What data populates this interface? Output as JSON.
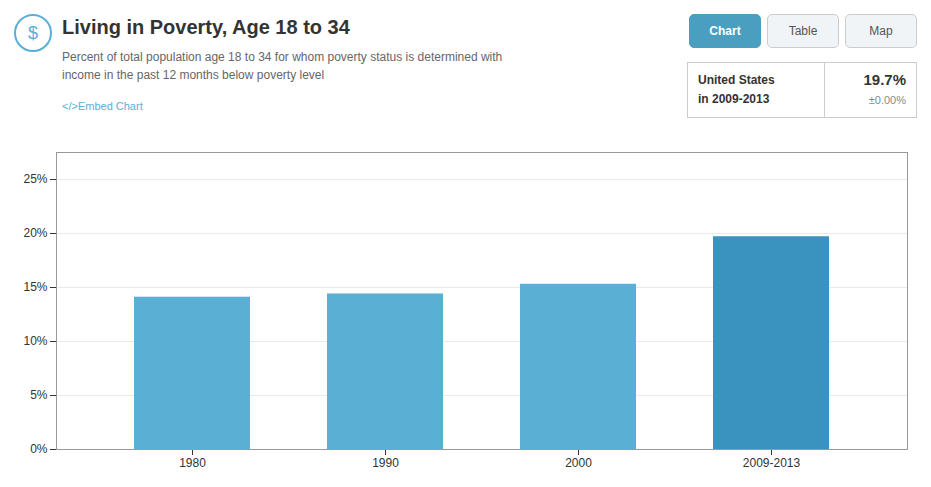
{
  "chart_data": {
    "type": "bar",
    "title": "Living in Poverty, Age 18 to 34",
    "subtitle": "Percent of total population age 18 to 34 for whom poverty status is determined with\nincome in the past 12 months below poverty level",
    "categories": [
      "1980",
      "1990",
      "2000",
      "2009-2013"
    ],
    "values": [
      14.1,
      14.4,
      15.3,
      19.7
    ],
    "colors": [
      "#5aafd4",
      "#5aafd4",
      "#5aafd4",
      "#3a92be"
    ],
    "ylim": [
      0,
      27.5
    ],
    "yticks": [
      {
        "value": 0,
        "label": "0%"
      },
      {
        "value": 5,
        "label": "5%"
      },
      {
        "value": 10,
        "label": "10%"
      },
      {
        "value": 15,
        "label": "15%"
      },
      {
        "value": 20,
        "label": "20%"
      },
      {
        "value": 25,
        "label": "25%"
      }
    ],
    "grid": true,
    "annotations": [
      "$",
      "</>Embed Chart",
      "Chart",
      "Table",
      "Map",
      "United States",
      "in 2009-2013",
      "19.7%",
      "±0.00%"
    ]
  }
}
